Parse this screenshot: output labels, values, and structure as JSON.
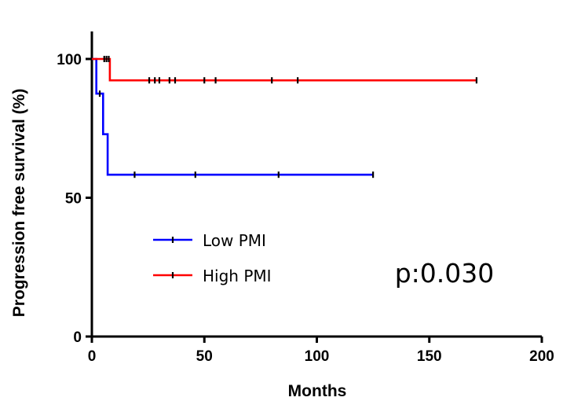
{
  "chart_data": {
    "type": "line",
    "subtype": "kaplan-meier",
    "xlabel": "Months",
    "ylabel": "Progression free survival (%)",
    "xlim": [
      0,
      200
    ],
    "ylim": [
      0,
      110
    ],
    "x_ticks": [
      0,
      50,
      100,
      150,
      200
    ],
    "y_ticks": [
      0,
      50,
      100
    ],
    "grid": false,
    "legend_position": "bottom-left",
    "annotation": "p:0.030",
    "series": [
      {
        "name": "Low PMI",
        "color": "#0000ff",
        "steps": [
          [
            0,
            100
          ],
          [
            2,
            100
          ],
          [
            2,
            87.5
          ],
          [
            5,
            87.5
          ],
          [
            5,
            72.9
          ],
          [
            7,
            72.9
          ],
          [
            7,
            58.3
          ],
          [
            125,
            58.3
          ]
        ],
        "censored": [
          [
            3.5,
            87.5
          ],
          [
            19,
            58.3
          ],
          [
            46,
            58.3
          ],
          [
            83,
            58.3
          ],
          [
            125,
            58.3
          ]
        ]
      },
      {
        "name": "High PMI",
        "color": "#ff0000",
        "steps": [
          [
            0,
            100
          ],
          [
            8,
            100
          ],
          [
            8,
            92.3
          ],
          [
            171,
            92.3
          ]
        ],
        "censored": [
          [
            5.5,
            100
          ],
          [
            6.5,
            100
          ],
          [
            7.5,
            100
          ],
          [
            25.5,
            92.3
          ],
          [
            28,
            92.3
          ],
          [
            30,
            92.3
          ],
          [
            34.5,
            92.3
          ],
          [
            37,
            92.3
          ],
          [
            50,
            92.3
          ],
          [
            55,
            92.3
          ],
          [
            80,
            92.3
          ],
          [
            91.5,
            92.3
          ],
          [
            171,
            92.3
          ]
        ]
      }
    ]
  }
}
